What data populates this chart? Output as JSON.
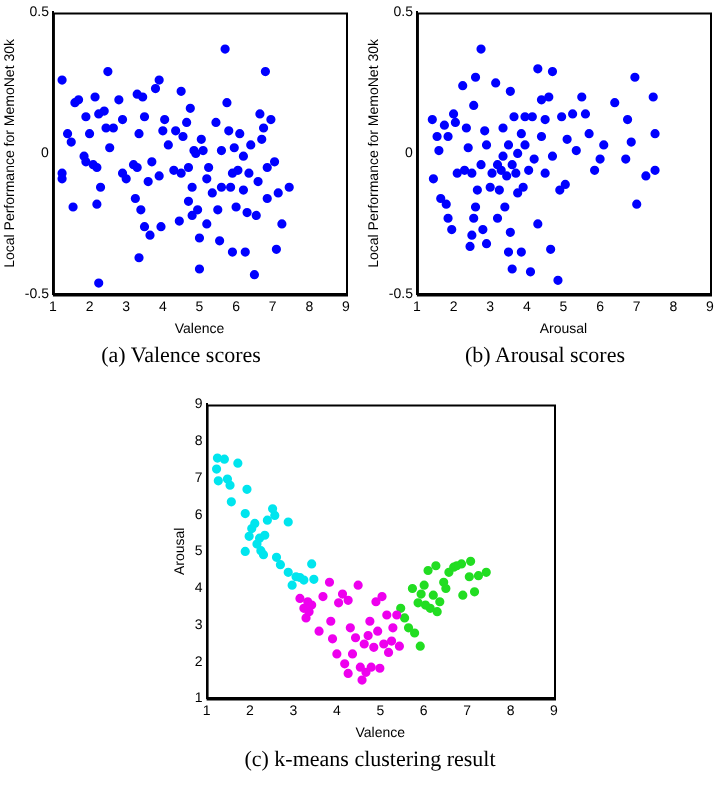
{
  "chart_data": [
    {
      "type": "scatter",
      "title": "(a) Valence scores",
      "xlabel": "Valence",
      "ylabel": "Local Performance for MemoNet 30k",
      "xlim": [
        1,
        9
      ],
      "ylim": [
        -0.5,
        0.5
      ],
      "xticks": [
        1,
        2,
        3,
        4,
        5,
        6,
        7,
        8,
        9
      ],
      "yticks": [
        -0.5,
        0,
        0.5
      ],
      "marker": "circle",
      "series": [
        {
          "color": "#0000ff",
          "x": [
            1.25,
            1.25,
            1.25,
            1.4,
            1.5,
            1.55,
            1.6,
            1.7,
            1.85,
            1.9,
            1.9,
            2.0,
            2.1,
            2.15,
            2.2,
            2.2,
            2.25,
            2.25,
            2.3,
            2.4,
            2.45,
            2.5,
            2.55,
            2.65,
            2.8,
            2.9,
            2.9,
            3.0,
            3.2,
            3.3,
            3.3,
            3.25,
            3.35,
            3.35,
            3.4,
            3.45,
            3.5,
            3.5,
            3.6,
            3.65,
            3.7,
            3.8,
            3.9,
            3.9,
            3.95,
            4.0,
            4.05,
            4.15,
            4.3,
            4.35,
            4.45,
            4.5,
            4.5,
            4.55,
            4.65,
            4.7,
            4.7,
            4.75,
            4.8,
            4.8,
            4.85,
            4.9,
            4.95,
            5.0,
            5.0,
            5.05,
            5.1,
            5.2,
            5.2,
            5.25,
            5.35,
            5.45,
            5.5,
            5.55,
            5.6,
            5.6,
            5.7,
            5.75,
            5.8,
            5.85,
            5.9,
            5.9,
            5.95,
            6.0,
            6.05,
            6.1,
            6.2,
            6.2,
            6.25,
            6.3,
            6.35,
            6.4,
            6.5,
            6.55,
            6.6,
            6.65,
            6.7,
            6.75,
            6.8,
            6.85,
            6.85,
            6.95,
            7.05,
            7.1,
            7.15,
            7.25,
            7.45
          ],
          "values": [
            0.26,
            -0.07,
            -0.09,
            0.07,
            0.04,
            -0.19,
            0.18,
            0.19,
            -0.01,
            0.13,
            -0.03,
            0.07,
            -0.04,
            0.2,
            -0.05,
            -0.18,
            0.14,
            -0.46,
            -0.12,
            0.15,
            0.09,
            0.29,
            0.02,
            0.09,
            0.19,
            0.12,
            -0.07,
            -0.09,
            -0.04,
            -0.05,
            0.21,
            -0.16,
            0.07,
            -0.37,
            -0.2,
            0.2,
            0.13,
            -0.26,
            -0.1,
            -0.29,
            -0.03,
            0.23,
            0.26,
            -0.08,
            -0.26,
            0.08,
            0.12,
            0.03,
            -0.06,
            0.08,
            -0.24,
            0.22,
            -0.07,
            0.06,
            0.11,
            -0.17,
            -0.05,
            0.16,
            -0.22,
            -0.12,
            0.01,
            0.0,
            -0.2,
            -0.3,
            -0.41,
            0.05,
            0.01,
            -0.25,
            -0.09,
            -0.05,
            -0.14,
            0.11,
            -0.2,
            -0.31,
            0.01,
            -0.12,
            0.37,
            0.18,
            0.08,
            -0.12,
            -0.07,
            -0.35,
            0.02,
            -0.19,
            -0.06,
            0.07,
            -0.13,
            -0.01,
            -0.35,
            -0.21,
            -0.07,
            0.03,
            -0.43,
            -0.22,
            -0.1,
            0.14,
            0.05,
            0.09,
            0.29,
            -0.16,
            -0.05,
            0.12,
            -0.03,
            -0.34,
            -0.14,
            -0.25,
            -0.12
          ]
        }
      ]
    },
    {
      "type": "scatter",
      "title": "(b) Arousal scores",
      "xlabel": "Arousal",
      "ylabel": "Local Performance for MemoNet 30k",
      "xlim": [
        1,
        9
      ],
      "ylim": [
        -0.5,
        0.5
      ],
      "xticks": [
        1,
        2,
        3,
        4,
        5,
        6,
        7,
        8,
        9
      ],
      "yticks": [
        -0.5,
        0,
        0.5
      ],
      "marker": "circle",
      "series": [
        {
          "color": "#0000ff",
          "x": [
            1.42,
            1.45,
            1.55,
            1.6,
            1.65,
            1.75,
            1.8,
            1.85,
            1.85,
            2.0,
            2.05,
            1.95,
            2.1,
            2.25,
            2.3,
            2.35,
            2.4,
            2.45,
            2.5,
            2.5,
            2.55,
            2.55,
            2.6,
            2.6,
            2.65,
            2.75,
            2.75,
            2.8,
            2.85,
            2.9,
            2.9,
            3.0,
            3.05,
            3.15,
            3.2,
            3.2,
            3.25,
            3.3,
            3.35,
            3.35,
            3.4,
            3.45,
            3.5,
            3.5,
            3.55,
            3.55,
            3.6,
            3.6,
            3.65,
            3.7,
            3.75,
            3.75,
            3.85,
            3.85,
            3.9,
            3.95,
            3.95,
            4.05,
            4.1,
            4.15,
            4.2,
            4.3,
            4.3,
            4.4,
            4.4,
            4.5,
            4.5,
            4.6,
            4.65,
            4.7,
            4.7,
            4.85,
            4.9,
            4.95,
            5.05,
            5.1,
            5.25,
            5.35,
            5.5,
            5.6,
            5.7,
            5.85,
            6.0,
            6.1,
            6.4,
            6.7,
            6.75,
            6.85,
            6.95,
            7.0,
            7.25,
            7.45,
            7.5,
            7.5
          ],
          "values": [
            0.12,
            -0.09,
            0.06,
            0.01,
            -0.16,
            0.1,
            -0.18,
            -0.23,
            0.06,
            0.14,
            0.11,
            -0.27,
            -0.07,
            0.24,
            -0.06,
            0.09,
            0.02,
            -0.33,
            -0.29,
            -0.07,
            -0.23,
            0.17,
            -0.19,
            0.27,
            -0.13,
            0.37,
            -0.04,
            -0.27,
            0.08,
            -0.32,
            0.03,
            -0.12,
            -0.07,
            0.25,
            -0.04,
            -0.23,
            -0.13,
            -0.06,
            -0.01,
            0.09,
            -0.19,
            -0.08,
            0.03,
            -0.35,
            0.22,
            -0.28,
            -0.04,
            -0.41,
            0.13,
            -0.07,
            -0.14,
            0.0,
            0.07,
            -0.35,
            -0.12,
            0.03,
            0.13,
            -0.06,
            -0.42,
            0.13,
            -0.02,
            0.3,
            -0.25,
            0.19,
            0.06,
            -0.07,
            0.12,
            0.2,
            -0.34,
            0.29,
            -0.01,
            -0.45,
            -0.13,
            0.13,
            -0.11,
            0.05,
            0.14,
            0.01,
            0.2,
            0.14,
            0.07,
            -0.06,
            -0.02,
            0.03,
            0.18,
            -0.02,
            0.12,
            0.04,
            0.27,
            -0.18,
            -0.08,
            0.2,
            0.07,
            -0.06
          ]
        }
      ]
    },
    {
      "type": "scatter",
      "title": "(c) k-means clustering result",
      "xlabel": "Valence",
      "ylabel": "Arousal",
      "xlim": [
        1,
        9
      ],
      "ylim": [
        1,
        9
      ],
      "xticks": [
        1,
        2,
        3,
        4,
        5,
        6,
        7,
        8,
        9
      ],
      "yticks": [
        1,
        2,
        3,
        4,
        5,
        6,
        7,
        8,
        9
      ],
      "marker": "circle",
      "series": [
        {
          "color": "#00e5ee",
          "x": [
            1.25,
            1.23,
            1.27,
            1.41,
            1.48,
            1.54,
            1.57,
            1.72,
            1.89,
            1.93,
            1.89,
            1.98,
            2.04,
            2.11,
            2.16,
            2.22,
            2.25,
            2.31,
            2.34,
            2.4,
            2.52,
            2.57,
            2.61,
            2.7,
            2.88,
            2.88,
            2.97,
            3.06,
            3.15,
            3.24,
            3.42,
            3.47
          ],
          "values": [
            7.54,
            7.24,
            6.92,
            7.51,
            6.97,
            6.8,
            6.35,
            7.4,
            6.03,
            6.69,
            5.0,
            5.41,
            5.62,
            5.76,
            5.2,
            5.36,
            5.02,
            4.91,
            5.44,
            5.85,
            6.16,
            5.98,
            4.84,
            4.64,
            5.8,
            4.43,
            4.08,
            4.31,
            4.29,
            4.22,
            4.66,
            4.24
          ]
        },
        {
          "color": "#ee00ee",
          "x": [
            3.15,
            3.24,
            3.29,
            3.33,
            3.36,
            3.42,
            3.59,
            3.68,
            3.83,
            3.86,
            3.9,
            4.0,
            4.04,
            4.13,
            4.18,
            4.26,
            4.26,
            4.31,
            4.36,
            4.43,
            4.49,
            4.54,
            4.58,
            4.63,
            4.67,
            4.72,
            4.76,
            4.79,
            4.85,
            4.9,
            4.94,
            4.99,
            5.04,
            5.08,
            5.15,
            5.19,
            5.26,
            5.29,
            5.38,
            5.44
          ],
          "values": [
            3.72,
            3.45,
            3.19,
            3.63,
            3.36,
            3.54,
            2.83,
            3.77,
            4.16,
            3.1,
            2.62,
            2.21,
            3.6,
            3.84,
            1.94,
            1.68,
            3.67,
            2.92,
            2.21,
            2.65,
            4.08,
            1.85,
            1.5,
            2.48,
            1.71,
            2.71,
            3.1,
            1.85,
            2.39,
            3.63,
            2.83,
            1.82,
            3.77,
            2.48,
            3.27,
            2.25,
            2.56,
            2.92,
            3.27,
            2.42
          ]
        },
        {
          "color": "#22dd22",
          "x": [
            5.47,
            5.56,
            5.65,
            5.74,
            5.79,
            5.87,
            5.92,
            5.94,
            6.01,
            6.04,
            6.1,
            6.15,
            6.22,
            6.28,
            6.31,
            6.37,
            6.46,
            6.51,
            6.58,
            6.69,
            6.76,
            6.87,
            6.9,
            7.05,
            7.08,
            7.17,
            7.26,
            7.44
          ],
          "values": [
            3.45,
            3.19,
            2.92,
            3.99,
            2.78,
            3.6,
            2.42,
            3.84,
            4.08,
            3.54,
            4.48,
            3.45,
            3.81,
            4.61,
            3.36,
            3.63,
            4.16,
            3.99,
            4.43,
            4.57,
            4.61,
            4.66,
            3.81,
            4.31,
            4.73,
            3.9,
            4.34,
            4.43
          ]
        }
      ]
    }
  ]
}
